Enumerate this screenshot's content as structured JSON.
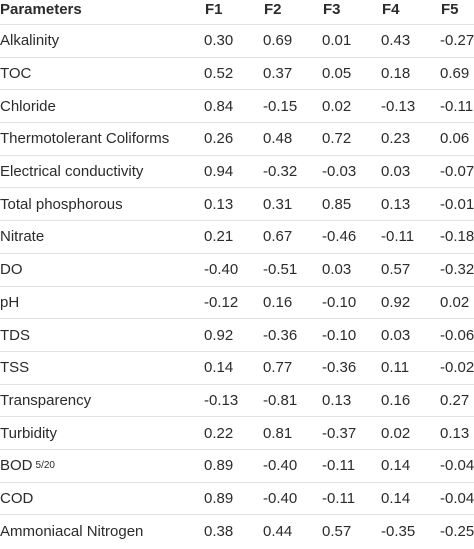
{
  "table": {
    "headers": [
      "Parameters",
      "F1",
      "F2",
      "F3",
      "F4",
      "F5"
    ],
    "rows": [
      {
        "param": "Alkalinity",
        "sub": "",
        "values": [
          "0.30",
          "0.69",
          "0.01",
          "0.43",
          "-0.27"
        ]
      },
      {
        "param": "TOC",
        "sub": "",
        "values": [
          "0.52",
          "0.37",
          "0.05",
          "0.18",
          "0.69"
        ]
      },
      {
        "param": "Chloride",
        "sub": "",
        "values": [
          "0.84",
          "-0.15",
          "0.02",
          "-0.13",
          "-0.11"
        ]
      },
      {
        "param": "Thermotolerant Coliforms",
        "sub": "",
        "values": [
          "0.26",
          "0.48",
          "0.72",
          "0.23",
          "0.06"
        ]
      },
      {
        "param": "Electrical conductivity",
        "sub": "",
        "values": [
          "0.94",
          "-0.32",
          "-0.03",
          "0.03",
          "-0.07"
        ]
      },
      {
        "param": "Total phosphorous",
        "sub": "",
        "values": [
          "0.13",
          "0.31",
          "0.85",
          "0.13",
          "-0.01"
        ]
      },
      {
        "param": "Nitrate",
        "sub": "",
        "values": [
          "0.21",
          "0.67",
          "-0.46",
          "-0.11",
          "-0.18"
        ]
      },
      {
        "param": "DO",
        "sub": "",
        "values": [
          "-0.40",
          "-0.51",
          "0.03",
          "0.57",
          "-0.32"
        ]
      },
      {
        "param": "pH",
        "sub": "",
        "values": [
          "-0.12",
          "0.16",
          "-0.10",
          "0.92",
          "0.02"
        ]
      },
      {
        "param": "TDS",
        "sub": "",
        "values": [
          "0.92",
          "-0.36",
          "-0.10",
          "0.03",
          "-0.06"
        ]
      },
      {
        "param": "TSS",
        "sub": "",
        "values": [
          "0.14",
          "0.77",
          "-0.36",
          "0.11",
          "-0.02"
        ]
      },
      {
        "param": "Transparency",
        "sub": "",
        "values": [
          "-0.13",
          "-0.81",
          "0.13",
          "0.16",
          "0.27"
        ]
      },
      {
        "param": "Turbidity",
        "sub": "",
        "values": [
          "0.22",
          "0.81",
          "-0.37",
          "0.02",
          "0.13"
        ]
      },
      {
        "param": "BOD",
        "sub": "5/20",
        "values": [
          "0.89",
          "-0.40",
          "-0.11",
          "0.14",
          "-0.04"
        ]
      },
      {
        "param": "COD",
        "sub": "",
        "values": [
          "0.89",
          "-0.40",
          "-0.11",
          "0.14",
          "-0.04"
        ]
      },
      {
        "param": "Ammoniacal Nitrogen",
        "sub": "",
        "values": [
          "0.38",
          "0.44",
          "0.57",
          "-0.35",
          "-0.25"
        ]
      }
    ]
  }
}
